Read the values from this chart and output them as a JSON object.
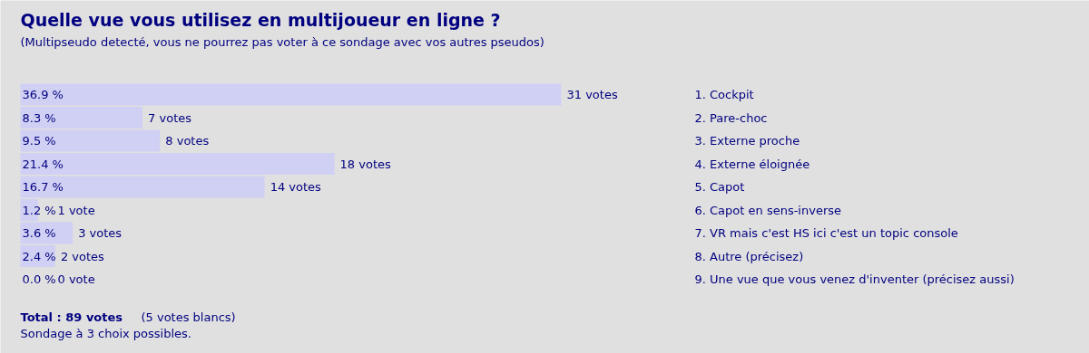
{
  "chart_data": {
    "type": "bar",
    "orientation": "horizontal",
    "title": "Quelle vue vous utilisez en multijoueur en ligne ?",
    "subtitle": "(Multipseudo detecté, vous ne pourrez pas voter à ce sondage avec vos autres pseudos)",
    "categories": [
      "1.  Cockpit",
      "2.  Pare-choc",
      "3.  Externe proche",
      "4.  Externe éloignée",
      "5.  Capot",
      "6.  Capot en sens-inverse",
      "7.  VR mais c'est HS ici c'est un topic console",
      "8.  Autre (précisez)",
      "9.  Une vue que vous venez d'inventer (précisez aussi)"
    ],
    "values": [
      31,
      7,
      8,
      18,
      14,
      1,
      3,
      2,
      0
    ],
    "color": "#d0d0f4",
    "value_labels": [
      "31 votes",
      "7 votes",
      "8 votes",
      "18 votes",
      "14 votes",
      "1 vote",
      "3 votes",
      "2 votes",
      "0 vote"
    ],
    "annotations": [
      "36.9 %",
      "8.3 %",
      "9.5 %",
      "21.4 %",
      "16.7 %",
      "1.2 %",
      "3.6 %",
      "2.4 %",
      "0.0 %",
      "Total : 89 votes",
      "(5 votes blancs)",
      "Sondage à 3 choix possibles."
    ]
  }
}
